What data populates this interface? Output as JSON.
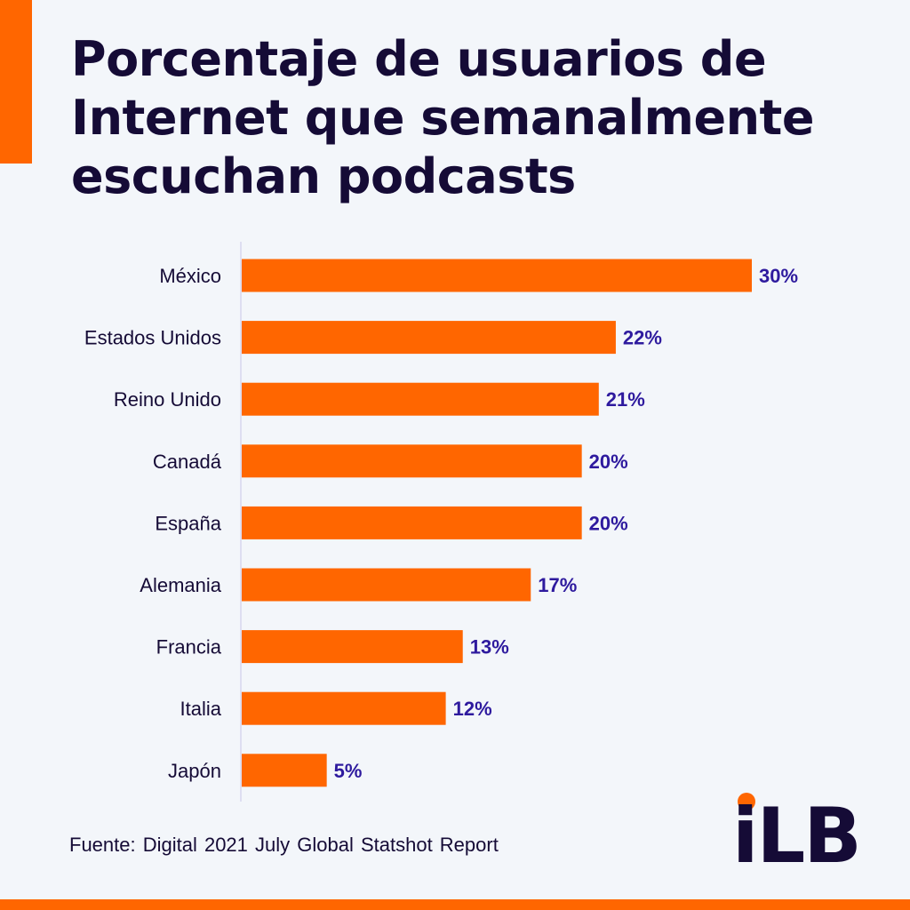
{
  "title_lines": [
    "Porcentaje de usuarios de",
    "Internet que semanalmente",
    "escuchan podcasts"
  ],
  "source": "Fuente: Digital 2021 July Global Statshot Report",
  "logo_text": "iLB",
  "colors": {
    "bar": "#ff6600",
    "value_label": "#2e1a9e",
    "text": "#150b36",
    "background": "#f3f6fa",
    "axis": "#d8d6ee"
  },
  "chart_data": {
    "type": "bar",
    "orientation": "horizontal",
    "title": "Porcentaje de usuarios de Internet que semanalmente escuchan podcasts",
    "categories": [
      "México",
      "Estados Unidos",
      "Reino Unido",
      "Canadá",
      "España",
      "Alemania",
      "Francia",
      "Italia",
      "Japón"
    ],
    "values": [
      30,
      22,
      21,
      20,
      20,
      17,
      13,
      12,
      5
    ],
    "value_labels": [
      "30%",
      "22%",
      "21%",
      "20%",
      "20%",
      "17%",
      "13%",
      "12%",
      "5%"
    ],
    "xlim": [
      0,
      30
    ],
    "unit": "%",
    "grid": false,
    "legend": "none"
  }
}
